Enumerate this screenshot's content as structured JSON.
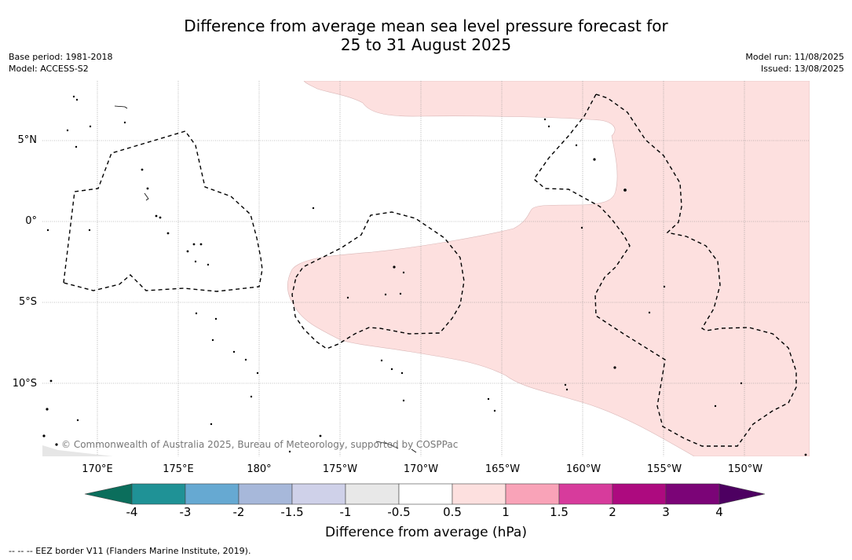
{
  "title_line1": "Difference from average mean sea level pressure forecast for",
  "title_line2": "25 to 31 August 2025",
  "base_period": "Base period: 1981-2018",
  "model": "Model: ACCESS-S2",
  "model_run": "Model run: 11/08/2025",
  "issued": "Issued: 13/08/2025",
  "copyright": "© Commonwealth of Australia 2025, Bureau of Meteorology, supported by COSPPac",
  "lat_labels": [
    "5°N",
    "0°",
    "5°S",
    "10°S"
  ],
  "lon_labels": [
    "170°E",
    "175°E",
    "180°",
    "175°W",
    "170°W",
    "165°W",
    "160°W",
    "155°W",
    "150°W"
  ],
  "legend": {
    "title": "Difference from average (hPa)",
    "ticks": [
      "-4",
      "-3",
      "-2",
      "-1.5",
      "-1",
      "-0.5",
      "0.5",
      "1",
      "1.5",
      "2",
      "3",
      "4"
    ],
    "colors": {
      "below_min": "#0b6e5c",
      "bins": [
        "#1f9296",
        "#66a9d2",
        "#a7b8da",
        "#cfd1e9",
        "#e8e8e8",
        "#ffffff",
        "#fde0df",
        "#f9a3b8",
        "#d73b9c",
        "#ad0a7f",
        "#7b0477"
      ],
      "above_max": "#4d0061"
    }
  },
  "map_colors": {
    "positive_anomaly_fill": "#fde0df",
    "eez_border": "#000000",
    "gridline": "#888888"
  },
  "footnote": "-- -- -- EEZ border V11 (Flanders Marine Institute, 2019)."
}
